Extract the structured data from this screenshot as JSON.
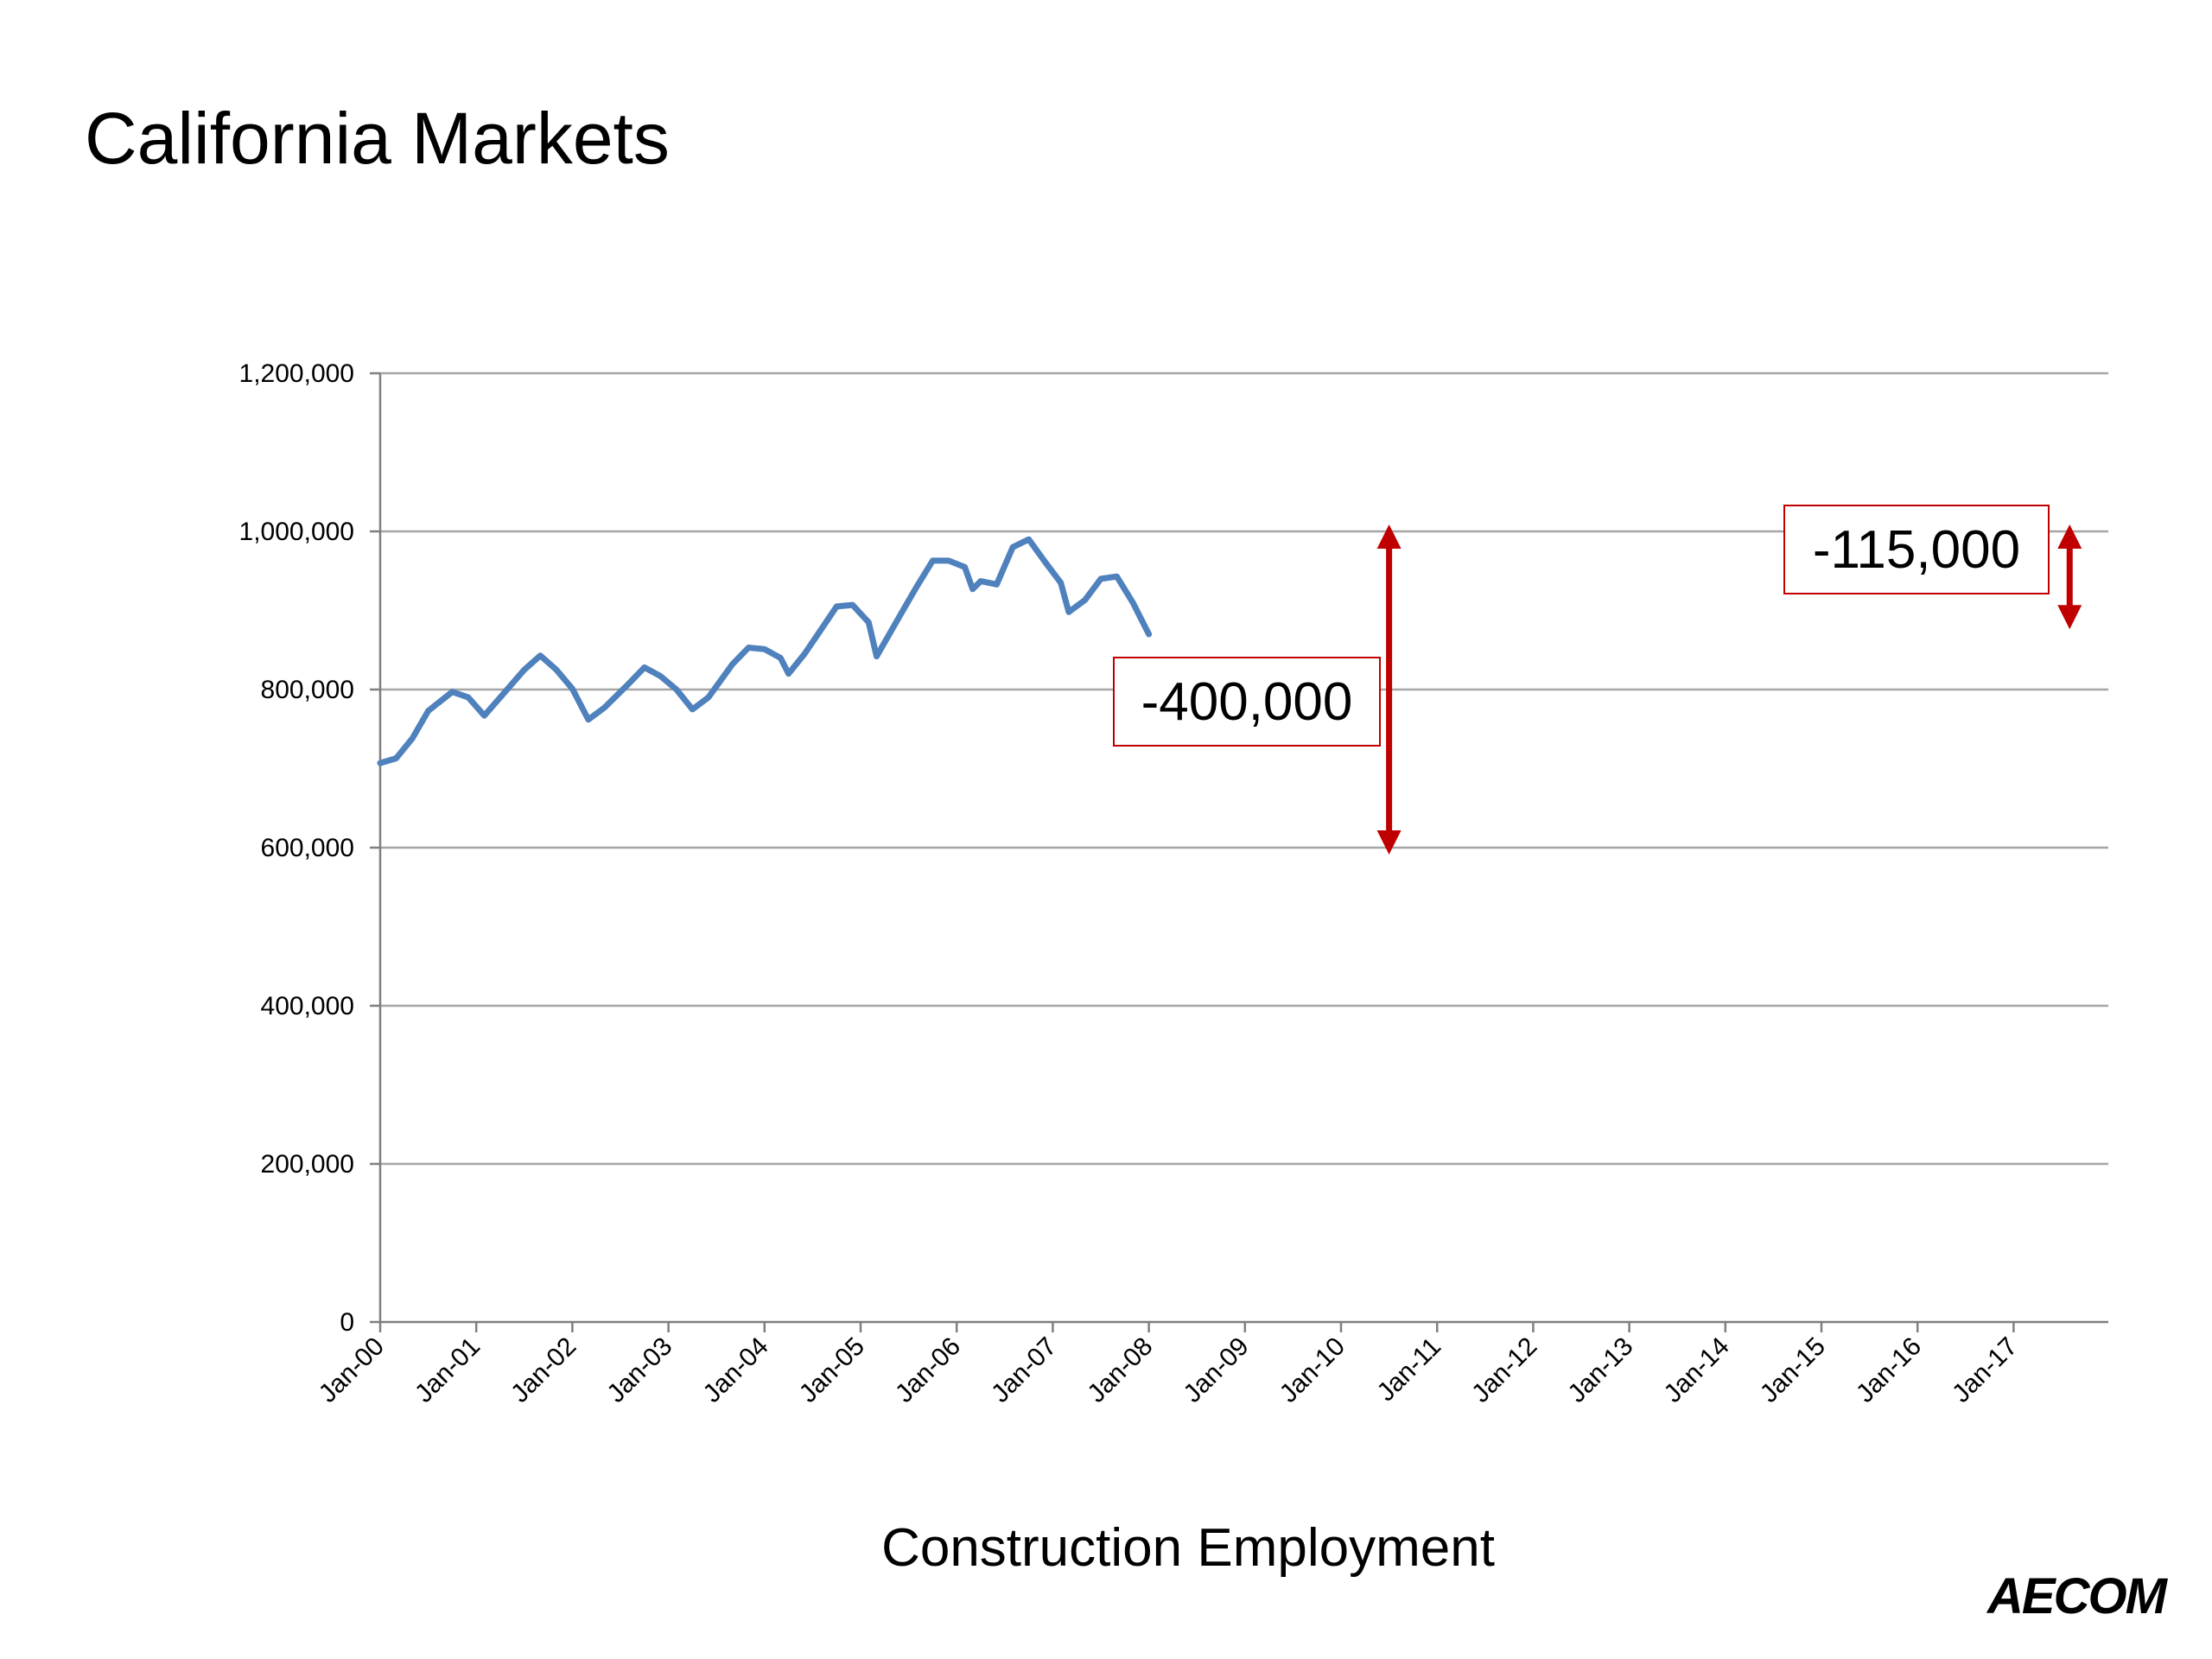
{
  "slide": {
    "title": "California Markets",
    "caption": "Construction Employment",
    "logo": "AECOM"
  },
  "colors": {
    "line": "#4f81bd",
    "annotation": "#c00000",
    "grid": "#a6a6a6",
    "axis": "#7f7f7f"
  },
  "chart_data": {
    "type": "line",
    "title": "",
    "xlabel": "",
    "ylabel": "",
    "ylim": [
      0,
      1200000
    ],
    "y_ticks": [
      0,
      200000,
      400000,
      600000,
      800000,
      1000000,
      1200000
    ],
    "y_tick_labels": [
      "0",
      "200,000",
      "400,000",
      "600,000",
      "800,000",
      "1,000,000",
      "1,200,000"
    ],
    "x_tick_labels": [
      "Jan-00",
      "Jan-01",
      "Jan-02",
      "Jan-03",
      "Jan-04",
      "Jan-05",
      "Jan-06",
      "Jan-07",
      "Jan-08",
      "Jan-09",
      "Jan-10",
      "Jan-11",
      "Jan-12",
      "Jan-13",
      "Jan-14",
      "Jan-15",
      "Jan-16",
      "Jan-17"
    ],
    "grid": true,
    "legend": "none",
    "series": [
      {
        "points": [
          [
            "Jan-00",
            707000
          ],
          [
            "Mar-00",
            713000
          ],
          [
            "May-00",
            738000
          ],
          [
            "Jul-00",
            773000
          ],
          [
            "Oct-00",
            797000
          ],
          [
            "Dec-00",
            790000
          ],
          [
            "Feb-01",
            767000
          ],
          [
            "Apr-01",
            790000
          ],
          [
            "Jul-01",
            825000
          ],
          [
            "Sep-01",
            843000
          ],
          [
            "Nov-01",
            825000
          ],
          [
            "Jan-02",
            801000
          ],
          [
            "Mar-02",
            762000
          ],
          [
            "May-02",
            777000
          ],
          [
            "Aug-02",
            807000
          ],
          [
            "Oct-02",
            828000
          ],
          [
            "Dec-02",
            817000
          ],
          [
            "Feb-03",
            800000
          ],
          [
            "Apr-03",
            775000
          ],
          [
            "Jun-03",
            790000
          ],
          [
            "Sep-03",
            832000
          ],
          [
            "Nov-03",
            853000
          ],
          [
            "Jan-04",
            851000
          ],
          [
            "Mar-04",
            840000
          ],
          [
            "Apr-04",
            820000
          ],
          [
            "Jun-04",
            845000
          ],
          [
            "Aug-04",
            875000
          ],
          [
            "Oct-04",
            905000
          ],
          [
            "Dec-04",
            907000
          ],
          [
            "Feb-05",
            885000
          ],
          [
            "Mar-05",
            842000
          ],
          [
            "Jun-05",
            895000
          ],
          [
            "Aug-05",
            930000
          ],
          [
            "Oct-05",
            963000
          ],
          [
            "Dec-05",
            963000
          ],
          [
            "Feb-06",
            955000
          ],
          [
            "Mar-06",
            927000
          ],
          [
            "Apr-06",
            937000
          ],
          [
            "Jun-06",
            933000
          ],
          [
            "Aug-06",
            980000
          ],
          [
            "Oct-06",
            990000
          ],
          [
            "Dec-06",
            962000
          ],
          [
            "Feb-07",
            935000
          ],
          [
            "Mar-07",
            898000
          ],
          [
            "May-07",
            913000
          ],
          [
            "Jul-07",
            940000
          ],
          [
            "Sep-07",
            943000
          ],
          [
            "Nov-07",
            910000
          ],
          [
            "Jan-08",
            870000
          ]
        ]
      }
    ],
    "annotations": [
      {
        "label": "-400,000",
        "from_date": "Jul-10",
        "from": 1000000,
        "to": 600000
      },
      {
        "label": "-115,000",
        "from_date": "Aug-17",
        "from": 1000000,
        "to": 885000
      }
    ]
  }
}
